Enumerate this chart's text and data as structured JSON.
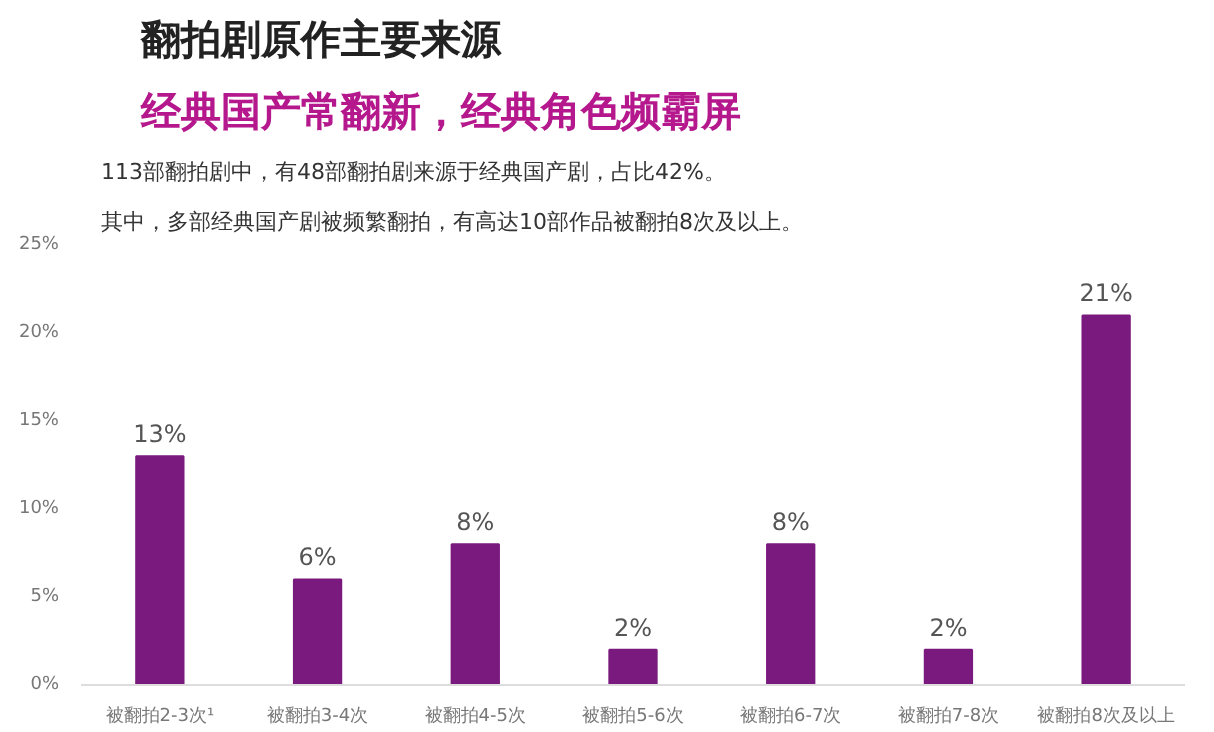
{
  "chart_data": {
    "type": "bar",
    "title": "翻拍剧原作主要来源",
    "subtitle": "经典国产常翻新，经典角色频霸屏",
    "annotations": [
      "113部翻拍剧中，有48部翻拍剧来源于经典国产剧，占比42%。",
      "其中，多部经典国产剧被频繁翻拍，有高达10部作品被翻拍8次及以上。"
    ],
    "categories": [
      "被翻拍2-3次¹",
      "被翻拍3-4次",
      "被翻拍4-5次",
      "被翻拍5-6次",
      "被翻拍6-7次",
      "被翻拍7-8次",
      "被翻拍8次及以上"
    ],
    "values": [
      13,
      6,
      8,
      2,
      8,
      2,
      21
    ],
    "color": "#7a1a7e",
    "ylim": [
      0,
      25
    ],
    "yticks": [
      {
        "value": 0,
        "label": "0%"
      },
      {
        "value": 5,
        "label": "5%"
      },
      {
        "value": 10,
        "label": "10%"
      },
      {
        "value": 15,
        "label": "15%"
      },
      {
        "value": 20,
        "label": "20%"
      },
      {
        "value": 25,
        "label": "25%"
      }
    ],
    "value_labels": [
      "13%",
      "6%",
      "8%",
      "2%",
      "8%",
      "2%",
      "21%"
    ],
    "grid": false
  }
}
